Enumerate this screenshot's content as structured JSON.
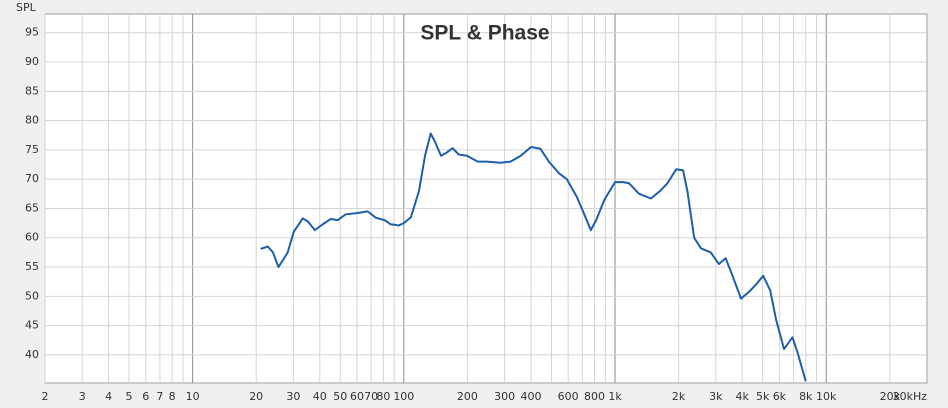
{
  "chart_data": {
    "type": "line",
    "title": "SPL & Phase",
    "y_label": "SPL",
    "xscale": "log",
    "grid": true,
    "color": "#1f5fa8",
    "xlim": [
      2,
      30000
    ],
    "ylim": [
      35.2,
      98.2
    ],
    "yticks": [
      40,
      45,
      50,
      55,
      60,
      65,
      70,
      75,
      80,
      85,
      90,
      95
    ],
    "xticks": [
      2,
      3,
      4,
      5,
      6,
      7,
      8,
      10,
      20,
      30,
      40,
      50,
      60,
      70,
      80,
      100,
      200,
      300,
      400,
      600,
      800,
      {
        "value": 1000,
        "label": "1k"
      },
      {
        "value": 2000,
        "label": "2k"
      },
      {
        "value": 3000,
        "label": "3k"
      },
      {
        "value": 4000,
        "label": "4k"
      },
      {
        "value": 5000,
        "label": "5k"
      },
      {
        "value": 6000,
        "label": "6k"
      },
      {
        "value": 8000,
        "label": "8k"
      },
      {
        "value": 10000,
        "label": "10k"
      },
      {
        "value": 20000,
        "label": "20k"
      },
      {
        "value": 30000,
        "label": "30kHz"
      }
    ],
    "xgrid": [
      2,
      3,
      4,
      5,
      6,
      7,
      8,
      9,
      10,
      20,
      30,
      40,
      50,
      60,
      70,
      80,
      90,
      100,
      200,
      300,
      400,
      500,
      600,
      700,
      800,
      900,
      1000,
      2000,
      3000,
      4000,
      5000,
      6000,
      7000,
      8000,
      9000,
      10000,
      20000
    ],
    "x": [
      21,
      22.7,
      24,
      25.5,
      28.2,
      30.1,
      33.2,
      35.1,
      37.9,
      41.3,
      45.1,
      48.6,
      53.1,
      59.9,
      67.4,
      73.8,
      81.2,
      86.6,
      94.5,
      100,
      108,
      118,
      126,
      134,
      140,
      150,
      159,
      170,
      182,
      199,
      224,
      247,
      287,
      320,
      358,
      400,
      443,
      486,
      543,
      591,
      659,
      715,
      768,
      814,
      891,
      1000,
      1092,
      1165,
      1300,
      1480,
      1635,
      1770,
      1950,
      2100,
      2200,
      2370,
      2550,
      2840,
      3100,
      3340,
      3600,
      3950,
      4320,
      4650,
      5030,
      5430,
      5790,
      6310,
      6920,
      7300,
      8000
    ],
    "values": [
      58.1,
      58.5,
      57.5,
      55,
      57.5,
      61,
      63.3,
      62.8,
      61.3,
      62.3,
      63.2,
      63,
      64,
      64.2,
      64.5,
      63.4,
      63,
      62.3,
      62.1,
      62.5,
      63.5,
      68,
      74,
      77.8,
      76.5,
      74,
      74.5,
      75.3,
      74.2,
      74,
      73,
      73,
      72.8,
      73,
      74,
      75.5,
      75.2,
      73,
      71,
      70,
      67,
      64,
      61.3,
      63,
      66.5,
      69.5,
      69.5,
      69.3,
      67.5,
      66.7,
      68,
      69.3,
      71.7,
      71.5,
      68,
      60,
      58.2,
      57.5,
      55.5,
      56.5,
      53.5,
      49.6,
      50.8,
      52,
      53.5,
      51,
      46,
      41,
      43,
      40.5,
      35.5
    ]
  }
}
